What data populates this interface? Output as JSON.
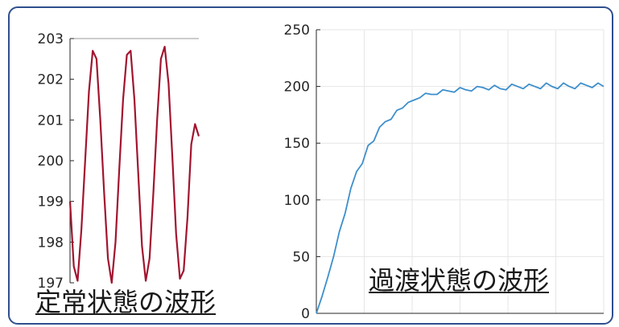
{
  "colors": {
    "frame": "#2f4f8f",
    "steady_line": "#a2142f",
    "transient_line": "#3d8fcc",
    "axis": "#262626",
    "grid": "#e6e6e6"
  },
  "captions": {
    "steady": "定常状態の波形",
    "transient": "過渡状態の波形"
  },
  "chart_data": [
    {
      "type": "line",
      "ylim": [
        197,
        203
      ],
      "y_ticks": [
        "197",
        "198",
        "199",
        "200",
        "201",
        "202",
        "203"
      ],
      "series": [
        {
          "color": "#a2142f",
          "x": [
            0,
            0.125,
            0.25,
            0.375,
            0.5,
            0.625,
            0.75,
            0.875,
            1.0,
            1.125,
            1.25,
            1.375,
            1.5,
            1.625,
            1.75,
            1.875,
            2.0,
            2.125,
            2.25,
            2.375,
            2.5,
            2.625,
            2.75,
            2.875,
            3.0,
            3.125,
            3.25,
            3.375,
            3.5,
            3.625,
            3.75,
            3.875,
            4.0,
            4.125,
            4.25
          ],
          "y": [
            199.0,
            197.4,
            197.05,
            198.3,
            200.0,
            201.7,
            202.7,
            202.5,
            201.0,
            199.2,
            197.6,
            197.0,
            198.0,
            199.8,
            201.5,
            202.6,
            202.7,
            201.5,
            199.7,
            197.9,
            197.05,
            197.6,
            199.2,
            201.0,
            202.5,
            202.8,
            201.9,
            200.1,
            198.2,
            197.1,
            197.3,
            198.6,
            200.4,
            200.9,
            200.6
          ]
        }
      ]
    },
    {
      "type": "line",
      "ylim": [
        0,
        250
      ],
      "y_ticks": [
        "0",
        "50",
        "100",
        "150",
        "200",
        "250"
      ],
      "series": [
        {
          "color": "#3d8fcc",
          "x": [
            0,
            0.02,
            0.04,
            0.06,
            0.08,
            0.1,
            0.12,
            0.14,
            0.16,
            0.18,
            0.2,
            0.22,
            0.24,
            0.26,
            0.28,
            0.3,
            0.32,
            0.34,
            0.36,
            0.38,
            0.4,
            0.42,
            0.44,
            0.46,
            0.48,
            0.5,
            0.52,
            0.54,
            0.56,
            0.58,
            0.6,
            0.62,
            0.64,
            0.66,
            0.68,
            0.7,
            0.72,
            0.74,
            0.76,
            0.78,
            0.8,
            0.82,
            0.84,
            0.86,
            0.88,
            0.9,
            0.92,
            0.94,
            0.96,
            0.98,
            1.0
          ],
          "y": [
            0,
            15,
            32,
            50,
            72,
            88,
            110,
            125,
            132,
            148,
            152,
            164,
            169,
            171,
            179,
            181,
            186,
            188,
            190,
            194,
            193,
            193,
            197,
            196,
            195,
            199,
            197,
            196,
            200,
            199,
            197,
            201,
            198,
            197,
            202,
            200,
            198,
            202,
            200,
            198,
            203,
            200,
            198,
            203,
            200,
            198,
            203,
            201,
            199,
            203,
            200
          ]
        }
      ]
    }
  ]
}
